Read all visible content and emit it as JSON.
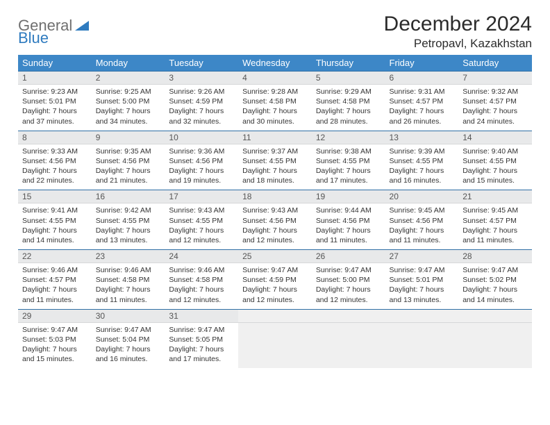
{
  "logo": {
    "text1": "General",
    "text2": "Blue",
    "triangle_color": "#2f7bbf",
    "text1_color": "#6f6f6f"
  },
  "title": "December 2024",
  "location": "Petropavl, Kazakhstan",
  "colors": {
    "header_bg": "#3d87c7",
    "header_text": "#ffffff",
    "row_border": "#2f6fa5",
    "daynum_bg": "#e8e9ea",
    "page_bg": "#ffffff"
  },
  "weekdays": [
    "Sunday",
    "Monday",
    "Tuesday",
    "Wednesday",
    "Thursday",
    "Friday",
    "Saturday"
  ],
  "weeks": [
    [
      {
        "n": "1",
        "sr": "9:23 AM",
        "ss": "5:01 PM",
        "dh": "7",
        "dm": "37"
      },
      {
        "n": "2",
        "sr": "9:25 AM",
        "ss": "5:00 PM",
        "dh": "7",
        "dm": "34"
      },
      {
        "n": "3",
        "sr": "9:26 AM",
        "ss": "4:59 PM",
        "dh": "7",
        "dm": "32"
      },
      {
        "n": "4",
        "sr": "9:28 AM",
        "ss": "4:58 PM",
        "dh": "7",
        "dm": "30"
      },
      {
        "n": "5",
        "sr": "9:29 AM",
        "ss": "4:58 PM",
        "dh": "7",
        "dm": "28"
      },
      {
        "n": "6",
        "sr": "9:31 AM",
        "ss": "4:57 PM",
        "dh": "7",
        "dm": "26"
      },
      {
        "n": "7",
        "sr": "9:32 AM",
        "ss": "4:57 PM",
        "dh": "7",
        "dm": "24"
      }
    ],
    [
      {
        "n": "8",
        "sr": "9:33 AM",
        "ss": "4:56 PM",
        "dh": "7",
        "dm": "22"
      },
      {
        "n": "9",
        "sr": "9:35 AM",
        "ss": "4:56 PM",
        "dh": "7",
        "dm": "21"
      },
      {
        "n": "10",
        "sr": "9:36 AM",
        "ss": "4:56 PM",
        "dh": "7",
        "dm": "19"
      },
      {
        "n": "11",
        "sr": "9:37 AM",
        "ss": "4:55 PM",
        "dh": "7",
        "dm": "18"
      },
      {
        "n": "12",
        "sr": "9:38 AM",
        "ss": "4:55 PM",
        "dh": "7",
        "dm": "17"
      },
      {
        "n": "13",
        "sr": "9:39 AM",
        "ss": "4:55 PM",
        "dh": "7",
        "dm": "16"
      },
      {
        "n": "14",
        "sr": "9:40 AM",
        "ss": "4:55 PM",
        "dh": "7",
        "dm": "15"
      }
    ],
    [
      {
        "n": "15",
        "sr": "9:41 AM",
        "ss": "4:55 PM",
        "dh": "7",
        "dm": "14"
      },
      {
        "n": "16",
        "sr": "9:42 AM",
        "ss": "4:55 PM",
        "dh": "7",
        "dm": "13"
      },
      {
        "n": "17",
        "sr": "9:43 AM",
        "ss": "4:55 PM",
        "dh": "7",
        "dm": "12"
      },
      {
        "n": "18",
        "sr": "9:43 AM",
        "ss": "4:56 PM",
        "dh": "7",
        "dm": "12"
      },
      {
        "n": "19",
        "sr": "9:44 AM",
        "ss": "4:56 PM",
        "dh": "7",
        "dm": "11"
      },
      {
        "n": "20",
        "sr": "9:45 AM",
        "ss": "4:56 PM",
        "dh": "7",
        "dm": "11"
      },
      {
        "n": "21",
        "sr": "9:45 AM",
        "ss": "4:57 PM",
        "dh": "7",
        "dm": "11"
      }
    ],
    [
      {
        "n": "22",
        "sr": "9:46 AM",
        "ss": "4:57 PM",
        "dh": "7",
        "dm": "11"
      },
      {
        "n": "23",
        "sr": "9:46 AM",
        "ss": "4:58 PM",
        "dh": "7",
        "dm": "11"
      },
      {
        "n": "24",
        "sr": "9:46 AM",
        "ss": "4:58 PM",
        "dh": "7",
        "dm": "12"
      },
      {
        "n": "25",
        "sr": "9:47 AM",
        "ss": "4:59 PM",
        "dh": "7",
        "dm": "12"
      },
      {
        "n": "26",
        "sr": "9:47 AM",
        "ss": "5:00 PM",
        "dh": "7",
        "dm": "12"
      },
      {
        "n": "27",
        "sr": "9:47 AM",
        "ss": "5:01 PM",
        "dh": "7",
        "dm": "13"
      },
      {
        "n": "28",
        "sr": "9:47 AM",
        "ss": "5:02 PM",
        "dh": "7",
        "dm": "14"
      }
    ],
    [
      {
        "n": "29",
        "sr": "9:47 AM",
        "ss": "5:03 PM",
        "dh": "7",
        "dm": "15"
      },
      {
        "n": "30",
        "sr": "9:47 AM",
        "ss": "5:04 PM",
        "dh": "7",
        "dm": "16"
      },
      {
        "n": "31",
        "sr": "9:47 AM",
        "ss": "5:05 PM",
        "dh": "7",
        "dm": "17"
      },
      null,
      null,
      null,
      null
    ]
  ],
  "labels": {
    "sunrise": "Sunrise:",
    "sunset": "Sunset:",
    "daylight_prefix": "Daylight:",
    "hours_word": "hours",
    "and_word": "and",
    "minutes_word": "minutes."
  }
}
